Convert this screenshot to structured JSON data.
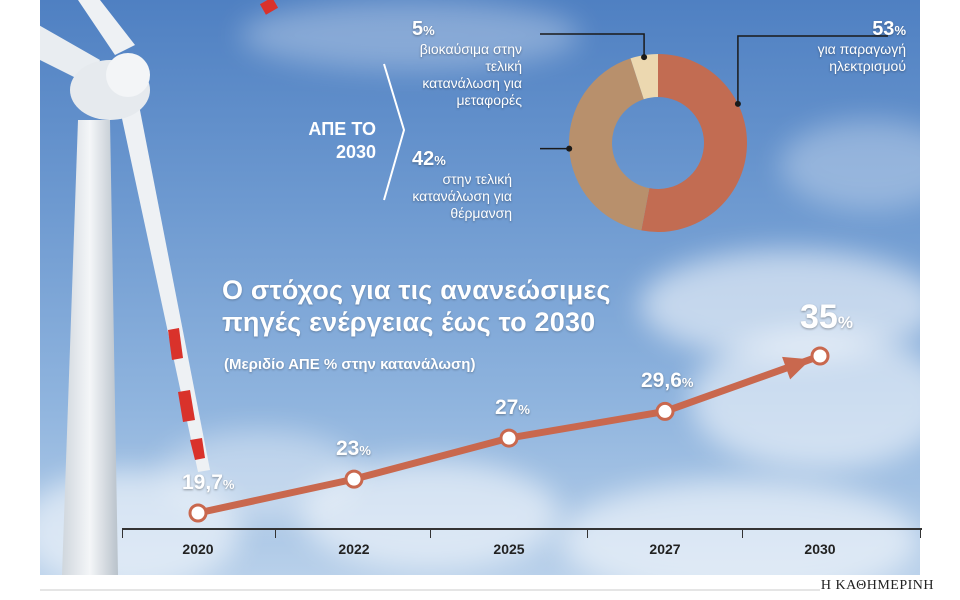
{
  "chart_data": [
    {
      "type": "line",
      "title": "Ο στόχος για τις ανανεώσιμες πηγές ενέργειας έως το 2030",
      "subtitle": "(Μεριδίο ΑΠΕ % στην κατανάλωση)",
      "categories": [
        "2020",
        "2022",
        "2025",
        "2027",
        "2030"
      ],
      "values": [
        19.7,
        23,
        27,
        29.6,
        35
      ],
      "value_labels": [
        "19,7",
        "23",
        "27",
        "29,6",
        "35"
      ],
      "unit": "%",
      "line_color": "#c9684e",
      "arrow_at_end": true
    },
    {
      "type": "pie",
      "label": "ΑΠΕ ΤΟ 2030",
      "donut": true,
      "slices": [
        {
          "value": 53,
          "label": "53",
          "desc": "για παραγωγή ηλεκτρισμού",
          "color": "#c26c52"
        },
        {
          "value": 42,
          "label": "42",
          "desc": "στην τελική κατανάλωση για θέρμανση",
          "color": "#b8906c"
        },
        {
          "value": 5,
          "label": "5",
          "desc": "βιοκαύσιμα στην τελική κατανάλωση για μεταφορές",
          "color": "#ecd8b0"
        }
      ],
      "unit": "%"
    }
  ],
  "source": "Η ΚΑΘΗΜΕΡΙΝΗ"
}
